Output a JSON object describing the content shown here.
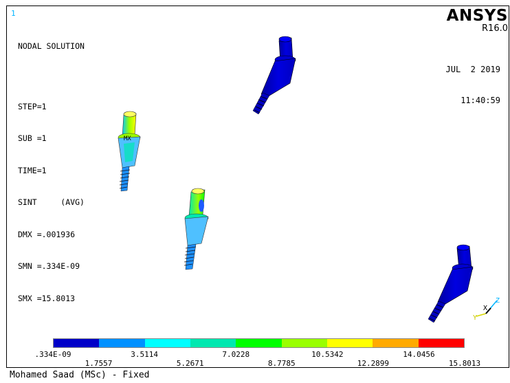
{
  "window_number": "1",
  "plot": {
    "title": "NODAL SOLUTION",
    "step": "STEP=1",
    "sub": "SUB =1",
    "time": "TIME=1",
    "sint": "SINT     (AVG)",
    "dmx": "DMX =.001936",
    "smn": "SMN =.334E-09",
    "smx": "SMX =15.8013",
    "max_marker": "MX"
  },
  "brand": {
    "name": "ANSYS",
    "release": "R16.0"
  },
  "datetime": {
    "date": "JUL  2 2019",
    "time": "11:40:59"
  },
  "legend": {
    "colors": [
      "#0000c8",
      "#0091ff",
      "#00ffff",
      "#00e8b0",
      "#00ff00",
      "#9aff00",
      "#ffff00",
      "#ffaa00",
      "#ff0000"
    ],
    "labels_top": [
      ".334E-09",
      "3.5114",
      "7.0228",
      "10.5342",
      "14.0456"
    ],
    "labels_bottom": [
      "1.7557",
      "5.2671",
      "8.7785",
      "12.2899",
      "15.8013"
    ]
  },
  "triad": {
    "x": "X",
    "y": "Y",
    "z": "Z"
  },
  "footer": "Mohamed Saad (MSc) - Fixed"
}
